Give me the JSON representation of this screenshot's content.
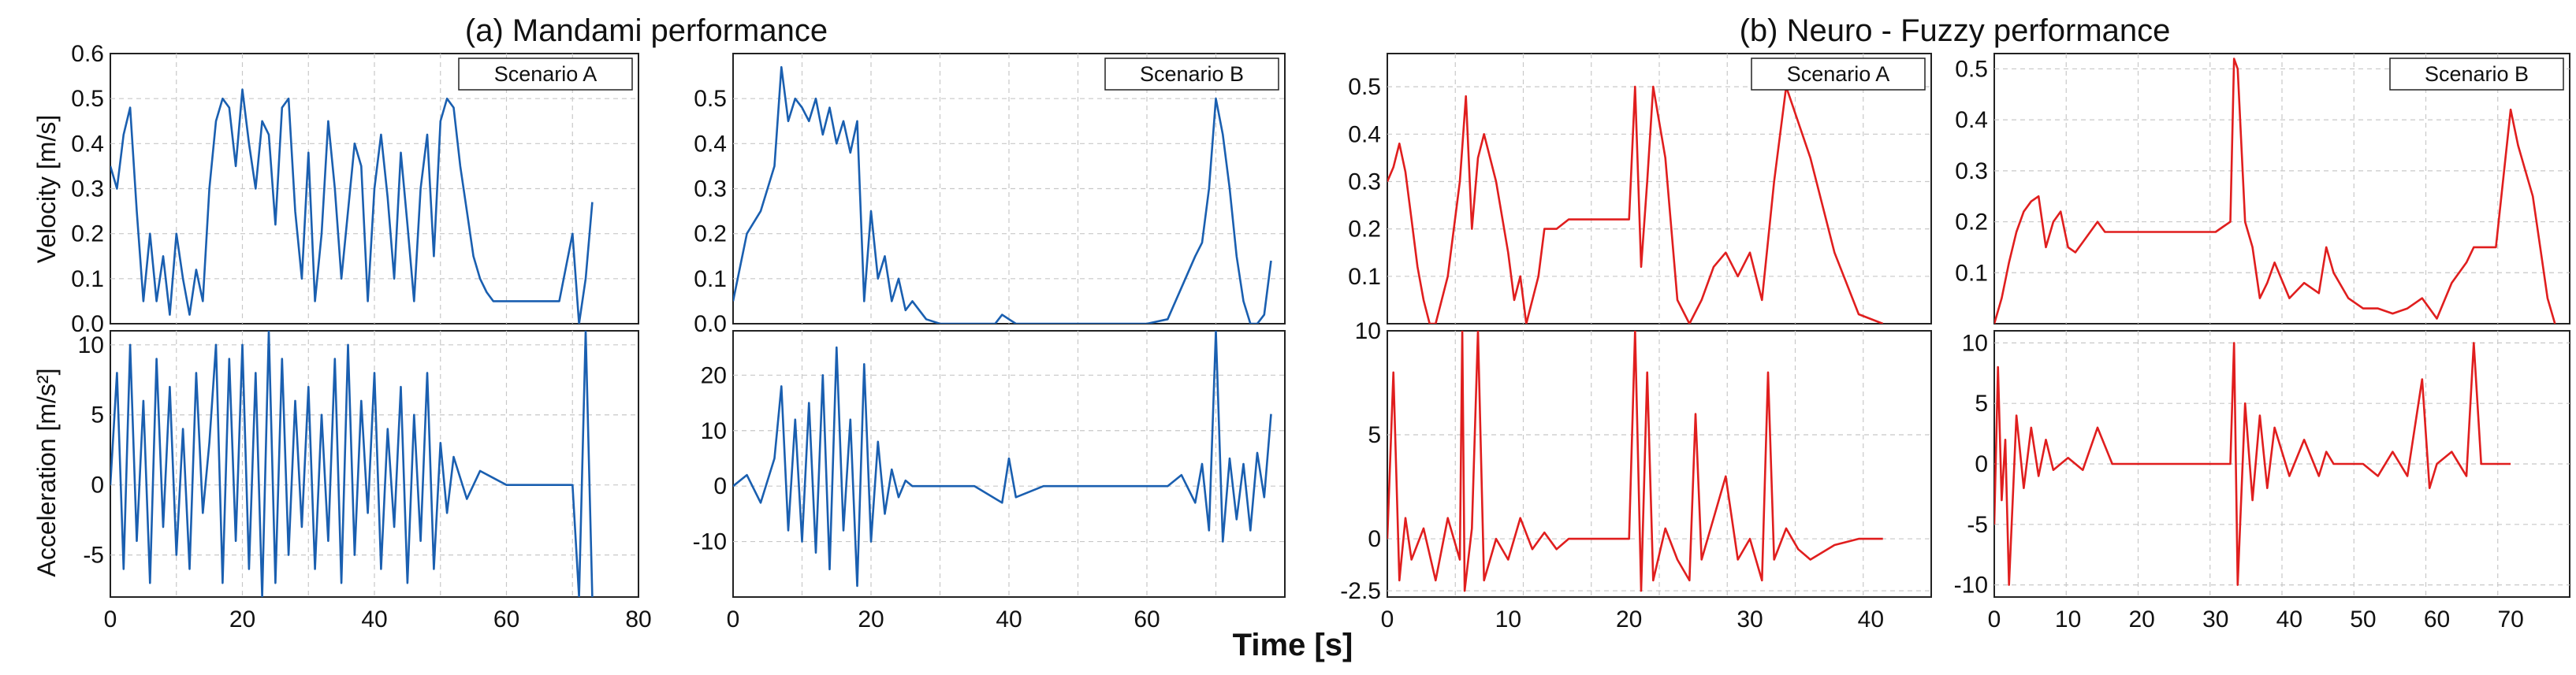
{
  "figure": {
    "left_title": "(a) Mandami performance",
    "right_title": "(b) Neuro - Fuzzy performance",
    "shared_xlabel": "Time [s]",
    "vel_ylabel": "Velocity [m/s]",
    "acc_ylabel": "Acceleration [m/s²]"
  },
  "colors": {
    "mandami": "#1a5fb0",
    "neuro_fuzzy": "#e01e1e",
    "grid": "#c8c8c8"
  },
  "chart_data": [
    {
      "type": "line",
      "id": "mA_vel",
      "legend": "Scenario A",
      "xlim": [
        0,
        80
      ],
      "ylim": [
        0,
        0.6
      ],
      "xticks": [],
      "yticks": [
        0,
        0.1,
        0.2,
        0.3,
        0.4,
        0.5,
        0.6
      ],
      "ytick_labels": [
        "0.0",
        "0.1",
        "0.2",
        "0.3",
        "0.4",
        "0.5",
        "0.6"
      ],
      "x": [
        0,
        1,
        2,
        3,
        4,
        5,
        6,
        7,
        8,
        9,
        10,
        11,
        12,
        13,
        14,
        15,
        16,
        17,
        18,
        19,
        20,
        21,
        22,
        23,
        24,
        25,
        26,
        27,
        28,
        29,
        30,
        31,
        32,
        33,
        34,
        35,
        36,
        37,
        38,
        39,
        40,
        41,
        42,
        43,
        44,
        45,
        46,
        47,
        48,
        49,
        50,
        51,
        52,
        53,
        54,
        55,
        56,
        57,
        58,
        59,
        60,
        62,
        64,
        66,
        68,
        70,
        71,
        72,
        73
      ],
      "y": [
        0.35,
        0.3,
        0.42,
        0.48,
        0.25,
        0.05,
        0.2,
        0.05,
        0.15,
        0.02,
        0.2,
        0.1,
        0.02,
        0.12,
        0.05,
        0.3,
        0.45,
        0.5,
        0.48,
        0.35,
        0.52,
        0.4,
        0.3,
        0.45,
        0.42,
        0.22,
        0.48,
        0.5,
        0.25,
        0.1,
        0.38,
        0.05,
        0.2,
        0.45,
        0.3,
        0.1,
        0.25,
        0.4,
        0.35,
        0.05,
        0.3,
        0.42,
        0.28,
        0.1,
        0.38,
        0.22,
        0.05,
        0.3,
        0.42,
        0.15,
        0.45,
        0.5,
        0.48,
        0.35,
        0.25,
        0.15,
        0.1,
        0.07,
        0.05,
        0.05,
        0.05,
        0.05,
        0.05,
        0.05,
        0.05,
        0.2,
        0.0,
        0.1,
        0.27
      ]
    },
    {
      "type": "line",
      "id": "mB_vel",
      "legend": "Scenario B",
      "xlim": [
        0,
        80
      ],
      "ylim": [
        0,
        0.6
      ],
      "xticks": [],
      "yticks": [
        0,
        0.1,
        0.2,
        0.3,
        0.4,
        0.5
      ],
      "ytick_labels": [
        "0.0",
        "0.1",
        "0.2",
        "0.3",
        "0.4",
        "0.5"
      ],
      "x": [
        0,
        2,
        4,
        6,
        7,
        8,
        9,
        10,
        11,
        12,
        13,
        14,
        15,
        16,
        17,
        18,
        19,
        20,
        21,
        22,
        23,
        24,
        25,
        26,
        28,
        30,
        35,
        38,
        39,
        40,
        41,
        45,
        50,
        55,
        60,
        63,
        65,
        67,
        68,
        69,
        70,
        71,
        72,
        73,
        74,
        75,
        76,
        77,
        78
      ],
      "y": [
        0.05,
        0.2,
        0.25,
        0.35,
        0.57,
        0.45,
        0.5,
        0.48,
        0.45,
        0.5,
        0.42,
        0.48,
        0.4,
        0.45,
        0.38,
        0.45,
        0.05,
        0.25,
        0.1,
        0.15,
        0.05,
        0.1,
        0.03,
        0.05,
        0.01,
        0.0,
        0.0,
        0.0,
        0.02,
        0.01,
        0.0,
        0.0,
        0.0,
        0.0,
        0.0,
        0.01,
        0.08,
        0.15,
        0.18,
        0.3,
        0.5,
        0.42,
        0.3,
        0.15,
        0.05,
        0.0,
        0.0,
        0.02,
        0.14
      ]
    },
    {
      "type": "line",
      "id": "mA_acc",
      "xlim": [
        0,
        80
      ],
      "ylim": [
        -8,
        11
      ],
      "xticks": [
        0,
        20,
        40,
        60,
        80
      ],
      "xtick_labels": [
        "0",
        "20",
        "40",
        "60",
        "80"
      ],
      "yticks": [
        -5,
        0,
        5,
        10
      ],
      "ytick_labels": [
        "-5",
        "0",
        "5",
        "10"
      ],
      "x": [
        0,
        1,
        2,
        3,
        4,
        5,
        6,
        7,
        8,
        9,
        10,
        11,
        12,
        13,
        14,
        15,
        16,
        17,
        18,
        19,
        20,
        21,
        22,
        23,
        24,
        25,
        26,
        27,
        28,
        29,
        30,
        31,
        32,
        33,
        34,
        35,
        36,
        37,
        38,
        39,
        40,
        41,
        42,
        43,
        44,
        45,
        46,
        47,
        48,
        49,
        50,
        51,
        52,
        54,
        56,
        58,
        60,
        65,
        70,
        71,
        72,
        73
      ],
      "y": [
        0,
        8,
        -6,
        10,
        -4,
        6,
        -7,
        9,
        -3,
        7,
        -5,
        4,
        -6,
        8,
        -2,
        3,
        10,
        -7,
        9,
        -4,
        10,
        -6,
        8,
        -8,
        11,
        -7,
        9,
        -5,
        6,
        -3,
        7,
        -6,
        5,
        -4,
        9,
        -7,
        10,
        -5,
        6,
        -2,
        8,
        -6,
        4,
        -3,
        7,
        -7,
        5,
        -4,
        8,
        -6,
        3,
        -2,
        2,
        -1,
        1,
        0.5,
        0,
        0,
        0,
        -8,
        11,
        -8
      ]
    },
    {
      "type": "line",
      "id": "mB_acc",
      "xlim": [
        0,
        80
      ],
      "ylim": [
        -20,
        28
      ],
      "xticks": [
        0,
        20,
        40,
        60
      ],
      "xtick_labels": [
        "0",
        "20",
        "40",
        "60"
      ],
      "yticks": [
        -10,
        0,
        10,
        20
      ],
      "ytick_labels": [
        "-10",
        "0",
        "10",
        "20"
      ],
      "x": [
        0,
        2,
        4,
        6,
        7,
        8,
        9,
        10,
        11,
        12,
        13,
        14,
        15,
        16,
        17,
        18,
        19,
        20,
        21,
        22,
        23,
        24,
        25,
        26,
        28,
        30,
        35,
        39,
        40,
        41,
        45,
        50,
        55,
        60,
        63,
        65,
        67,
        68,
        69,
        70,
        71,
        72,
        73,
        74,
        75,
        76,
        77,
        78
      ],
      "y": [
        0,
        2,
        -3,
        5,
        18,
        -8,
        12,
        -10,
        15,
        -12,
        20,
        -15,
        25,
        -8,
        12,
        -18,
        22,
        -10,
        8,
        -5,
        3,
        -2,
        1,
        0,
        0,
        0,
        0,
        -3,
        5,
        -2,
        0,
        0,
        0,
        0,
        0,
        2,
        -3,
        4,
        -8,
        28,
        -10,
        5,
        -6,
        4,
        -8,
        6,
        -2,
        13
      ]
    },
    {
      "type": "line",
      "id": "nA_vel",
      "legend": "Scenario A",
      "xlim": [
        0,
        45
      ],
      "ylim": [
        0,
        0.57
      ],
      "xticks": [],
      "yticks": [
        0.1,
        0.2,
        0.3,
        0.4,
        0.5
      ],
      "ytick_labels": [
        "0.1",
        "0.2",
        "0.3",
        "0.4",
        "0.5"
      ],
      "x": [
        0,
        0.5,
        1,
        1.5,
        2,
        2.5,
        3,
        3.5,
        4,
        5,
        6,
        6.5,
        7,
        7.5,
        8,
        9,
        10,
        10.5,
        11,
        11.5,
        12,
        12.5,
        13,
        14,
        15,
        16,
        17,
        18,
        19,
        20,
        20.5,
        21,
        21.5,
        22,
        23,
        24,
        25,
        26,
        27,
        28,
        29,
        30,
        31,
        32,
        33,
        35,
        37,
        39,
        41
      ],
      "y": [
        0.3,
        0.33,
        0.38,
        0.32,
        0.22,
        0.12,
        0.05,
        0.0,
        0.0,
        0.1,
        0.3,
        0.48,
        0.2,
        0.35,
        0.4,
        0.3,
        0.15,
        0.05,
        0.1,
        0.0,
        0.05,
        0.1,
        0.2,
        0.2,
        0.22,
        0.22,
        0.22,
        0.22,
        0.22,
        0.22,
        0.5,
        0.12,
        0.3,
        0.5,
        0.35,
        0.05,
        0.0,
        0.05,
        0.12,
        0.15,
        0.1,
        0.15,
        0.05,
        0.3,
        0.5,
        0.35,
        0.15,
        0.02,
        0.0
      ]
    },
    {
      "type": "line",
      "id": "nB_vel",
      "legend": "Scenario B",
      "xlim": [
        0,
        78
      ],
      "ylim": [
        0,
        0.53
      ],
      "xticks": [],
      "yticks": [
        0.1,
        0.2,
        0.3,
        0.4,
        0.5
      ],
      "ytick_labels": [
        "0.1",
        "0.2",
        "0.3",
        "0.4",
        "0.5"
      ],
      "x": [
        0,
        1,
        2,
        3,
        4,
        5,
        6,
        7,
        8,
        9,
        10,
        11,
        12,
        13,
        14,
        15,
        17,
        20,
        25,
        30,
        31,
        32,
        32.5,
        33,
        34,
        35,
        36,
        37,
        38,
        40,
        42,
        44,
        45,
        46,
        48,
        50,
        52,
        54,
        56,
        58,
        60,
        62,
        64,
        65,
        66,
        68,
        70,
        71,
        72,
        73,
        74,
        75,
        76
      ],
      "y": [
        0.0,
        0.05,
        0.12,
        0.18,
        0.22,
        0.24,
        0.25,
        0.15,
        0.2,
        0.22,
        0.15,
        0.14,
        0.16,
        0.18,
        0.2,
        0.18,
        0.18,
        0.18,
        0.18,
        0.18,
        0.19,
        0.2,
        0.52,
        0.5,
        0.2,
        0.15,
        0.05,
        0.08,
        0.12,
        0.05,
        0.08,
        0.06,
        0.15,
        0.1,
        0.05,
        0.03,
        0.03,
        0.02,
        0.03,
        0.05,
        0.01,
        0.08,
        0.12,
        0.15,
        0.15,
        0.15,
        0.42,
        0.35,
        0.3,
        0.25,
        0.15,
        0.05,
        0.0
      ]
    },
    {
      "type": "line",
      "id": "nA_acc",
      "xlim": [
        0,
        45
      ],
      "ylim": [
        -2.8,
        10
      ],
      "xticks": [
        0,
        10,
        20,
        30,
        40
      ],
      "xtick_labels": [
        "0",
        "10",
        "20",
        "30",
        "40"
      ],
      "yticks": [
        -2.5,
        0,
        5,
        10
      ],
      "ytick_labels": [
        "-2.5",
        "0",
        "5",
        "10"
      ],
      "x": [
        0,
        0.5,
        1,
        1.5,
        2,
        3,
        4,
        5,
        6,
        6.2,
        6.4,
        7,
        7.5,
        8,
        9,
        10,
        11,
        12,
        13,
        14,
        15,
        16,
        18,
        20,
        20.5,
        21,
        21.5,
        22,
        23,
        24,
        25,
        25.5,
        26,
        27,
        28,
        29,
        30,
        31,
        31.5,
        32,
        33,
        34,
        35,
        37,
        39,
        41
      ],
      "y": [
        0,
        8,
        -2,
        1,
        -1,
        0.5,
        -2,
        1,
        -1,
        10,
        -2.5,
        0.5,
        10,
        -2,
        0,
        -1,
        1,
        -0.5,
        0.3,
        -0.5,
        0,
        0,
        0,
        0,
        10,
        -2.5,
        8,
        -2,
        0.5,
        -1,
        -2,
        6,
        -1,
        1,
        3,
        -1,
        0,
        -2,
        8,
        -1,
        0.5,
        -0.5,
        -1,
        -0.3,
        0,
        0
      ]
    },
    {
      "type": "line",
      "id": "nB_acc",
      "xlim": [
        0,
        78
      ],
      "ylim": [
        -11,
        11
      ],
      "xticks": [
        0,
        10,
        20,
        30,
        40,
        50,
        60,
        70
      ],
      "xtick_labels": [
        "0",
        "10",
        "20",
        "30",
        "40",
        "50",
        "60",
        "70"
      ],
      "yticks": [
        -10,
        -5,
        0,
        5,
        10
      ],
      "ytick_labels": [
        "-10",
        "-5",
        "0",
        "5",
        "10"
      ],
      "x": [
        0,
        0.5,
        1,
        1.5,
        2,
        3,
        4,
        5,
        6,
        7,
        8,
        10,
        12,
        14,
        16,
        20,
        25,
        30,
        32,
        32.5,
        33,
        34,
        35,
        36,
        37,
        38,
        40,
        42,
        44,
        45,
        46,
        48,
        50,
        52,
        54,
        56,
        58,
        59,
        60,
        62,
        64,
        65,
        66,
        70
      ],
      "y": [
        -5,
        8,
        -3,
        2,
        -10,
        4,
        -2,
        3,
        -1,
        2,
        -0.5,
        0.5,
        -0.5,
        3,
        0,
        0,
        0,
        0,
        0,
        10,
        -10,
        5,
        -3,
        4,
        -2,
        3,
        -1,
        2,
        -1,
        1,
        0,
        0,
        0,
        -1,
        1,
        -1,
        7,
        -2,
        0,
        1,
        -1,
        10,
        0,
        0
      ]
    }
  ]
}
